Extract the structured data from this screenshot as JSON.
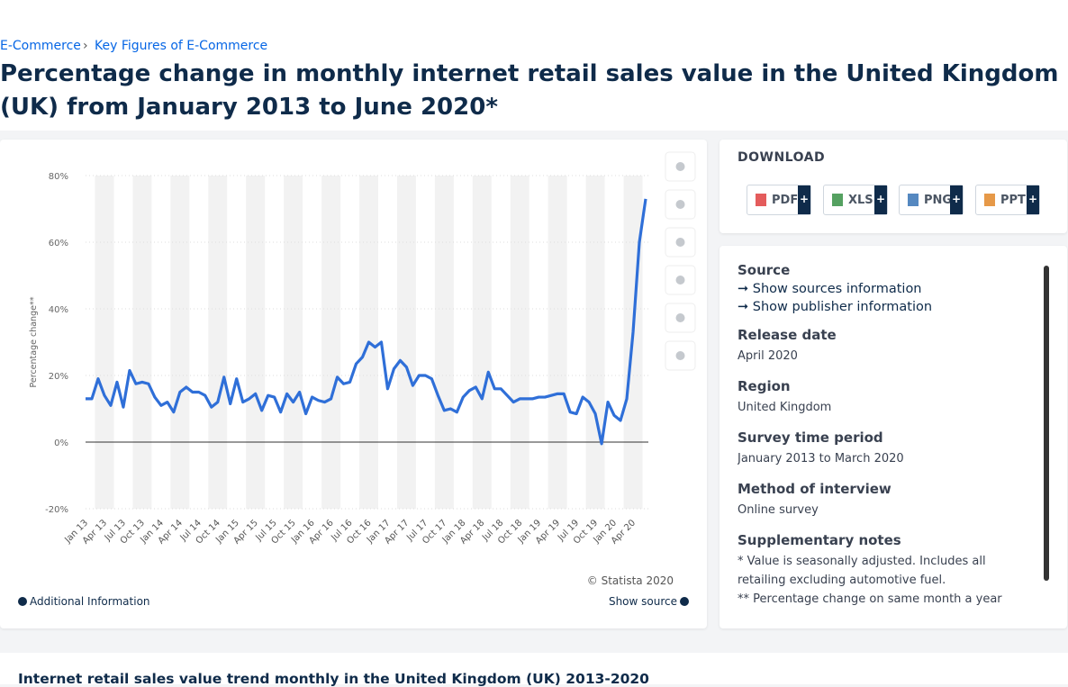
{
  "breadcrumb": [
    "E-Commerce",
    "Key Figures of E-Commerce"
  ],
  "page_title": "Percentage change in monthly internet retail sales value in the United Kingdom (UK) from January 2013 to June 2020*",
  "chart_data": {
    "type": "line",
    "y_label": "Percentage change**",
    "categories": [
      "Jan 13",
      null,
      null,
      "Apr 13",
      null,
      null,
      "Jul 13",
      null,
      null,
      "Oct 13",
      null,
      null,
      "Jan 14",
      null,
      null,
      "Apr 14",
      null,
      null,
      "Jul 14",
      null,
      null,
      "Oct 14",
      null,
      null,
      "Jan 15",
      null,
      null,
      "Apr 15",
      null,
      null,
      "Jul 15",
      null,
      null,
      "Oct 15",
      null,
      null,
      "Jan 16",
      null,
      null,
      "Apr 16",
      null,
      null,
      "Jul 16",
      null,
      null,
      "Oct 16",
      null,
      null,
      "Jan 17",
      null,
      null,
      "Apr 17",
      null,
      null,
      "Jul 17",
      null,
      null,
      "Oct 17",
      null,
      null,
      "Jan 18",
      null,
      null,
      "Apr 18",
      null,
      null,
      "Jul 18",
      null,
      null,
      "Oct 18",
      null,
      null,
      "Jan 19",
      null,
      null,
      "Apr 19",
      null,
      null,
      "Jul 19",
      null,
      null,
      "Oct 19",
      null,
      null,
      "Jan 20",
      null,
      null,
      "Apr 20",
      null,
      null
    ],
    "values": [
      13,
      13,
      19,
      14,
      11,
      18,
      10.5,
      21.5,
      17.5,
      18,
      17.5,
      13.5,
      11,
      12,
      9,
      15,
      16.5,
      15,
      15,
      14,
      10.5,
      12,
      19.5,
      11.5,
      19,
      12,
      13,
      14.5,
      9.5,
      14,
      13.5,
      9,
      14.5,
      12,
      15,
      8.5,
      13.5,
      12.5,
      12,
      13,
      19.5,
      17.5,
      18,
      23.5,
      25.5,
      30,
      28.5,
      30,
      16,
      22,
      24.5,
      22.5,
      17,
      20,
      20,
      19,
      14,
      9.5,
      10,
      9,
      13.5,
      15.5,
      16.5,
      13,
      21,
      16,
      16,
      14,
      12,
      13,
      13,
      13,
      13.5,
      13.5,
      14,
      14.5,
      14.5,
      9,
      8.5,
      13.5,
      12,
      8.5,
      -0.5,
      12,
      8,
      6.5,
      13,
      33,
      60,
      73
    ],
    "color": "#2f6fd8",
    "ylim": [
      -20,
      80
    ],
    "yticks": [
      {
        "value": -20,
        "label": "-20%"
      },
      {
        "value": 0,
        "label": "0%"
      },
      {
        "value": 20,
        "label": "20%"
      },
      {
        "value": 40,
        "label": "40%"
      },
      {
        "value": 60,
        "label": "60%"
      },
      {
        "value": 80,
        "label": "80%"
      }
    ],
    "grid": true,
    "credit": "© Statista 2020"
  },
  "chart_footer": {
    "additional": "Additional Information",
    "source": "Show source"
  },
  "download": {
    "title": "DOWNLOAD",
    "buttons": [
      "PDF",
      "XLS",
      "PNG",
      "PPT"
    ]
  },
  "info": {
    "source_title": "Source",
    "links": [
      "Show sources information",
      "Show publisher information"
    ],
    "items": [
      {
        "title": "Release date",
        "text": "April 2020"
      },
      {
        "title": "Region",
        "text": "United Kingdom"
      },
      {
        "title": "Survey time period",
        "text": "January 2013 to March 2020"
      },
      {
        "title": "Method of interview",
        "text": "Online survey"
      },
      {
        "title": "Supplementary notes",
        "text": "* Value is seasonally adjusted. Includes all retailing excluding automotive fuel."
      }
    ],
    "note2": "** Percentage change on same month a year"
  },
  "related_title": "Internet retail sales value trend monthly in the United Kingdom (UK) 2013-2020"
}
